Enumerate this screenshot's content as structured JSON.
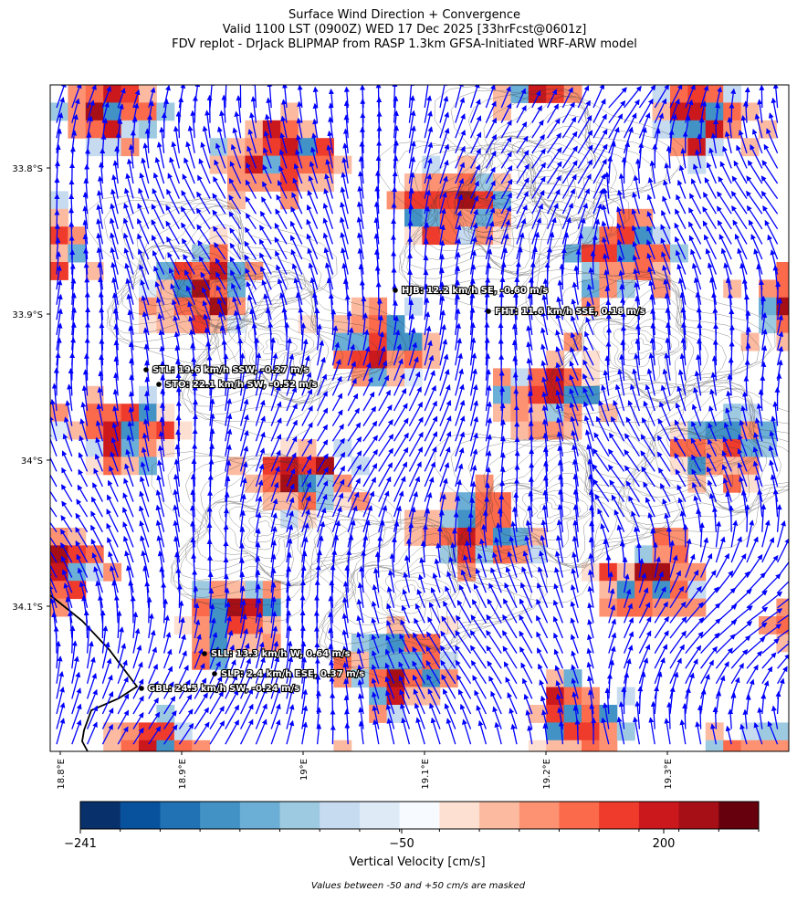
{
  "title": [
    "Surface Wind Direction + Convergence",
    "Valid 1100 LST (0900Z) WED 17 Dec 2025 [33hrFcst@0601z]",
    "FDV replot - DrJack BLIPMAP from RASP 1.3km GFSA-Initiated WRF-ARW model"
  ],
  "lat_ticks": [
    "33.8°S",
    "33.9°S",
    "34°S",
    "34.1°S"
  ],
  "lon_ticks": [
    "18.8°E",
    "18.9°E",
    "19°E",
    "19.1°E",
    "19.2°E",
    "19.3°E"
  ],
  "stations": [
    "HJB: 12.2 km/h SE, -0.60 m/s",
    "FHT: 11.6 km/h SSE, 0.18 m/s",
    "STL: 19.6 km/h SSW, -0.27 m/s",
    "STO: 22.1 km/h SW, -0.52 m/s",
    "SLL: 13.3 km/h W, 0.64 m/s",
    "SLP: 2.4 km/h ESE, 0.37 m/s",
    "GBL: 24.5 km/h SW, -0.24 m/s"
  ],
  "colorbar": {
    "colors": [
      "#08306b",
      "#08519c",
      "#2171b5",
      "#4292c6",
      "#6baed6",
      "#9ecae1",
      "#c6dbef",
      "#deebf7",
      "#f7fbff",
      "#fee0d2",
      "#fcbba1",
      "#fc9272",
      "#fb6a4a",
      "#ef3b2c",
      "#cb181d",
      "#a50f15",
      "#67000d"
    ],
    "tick_labels": [
      "−241",
      "−50",
      "200"
    ],
    "label": "Vertical Velocity [cm/s]"
  },
  "arrow_color": "#0000ff",
  "footnote": "Values between -50 and +50 cm/s are masked"
}
